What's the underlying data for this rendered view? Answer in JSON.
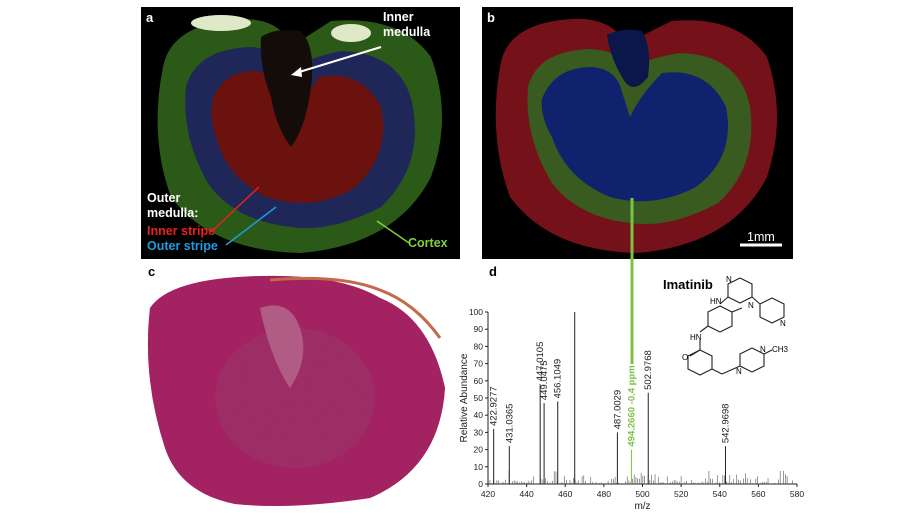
{
  "panels": {
    "a": {
      "label": "a",
      "inner_medulla": "Inner\nmedulla",
      "outer_medulla": "Outer\nmedulla:",
      "inner_stripe": "Inner stripe",
      "outer_stripe": "Outer stripe",
      "cortex": "Cortex",
      "colors": {
        "inner_stripe": "#e8221e",
        "outer_stripe": "#1e9be0",
        "cortex": "#7fd13b"
      }
    },
    "b": {
      "label": "b",
      "scale_bar": "1mm"
    },
    "c": {
      "label": "c"
    },
    "d": {
      "label": "d",
      "compound": "Imatinib",
      "structure_atoms": [
        "N",
        "N",
        "HN",
        "N",
        "HN",
        "O",
        "N",
        "N",
        "CH3"
      ]
    }
  },
  "chart_data": {
    "type": "bar",
    "xlabel": "m/z",
    "ylabel": "Relative Abundance",
    "xlim": [
      420,
      580
    ],
    "ylim": [
      0,
      100
    ],
    "xticks": [
      420,
      440,
      460,
      480,
      500,
      520,
      540,
      560,
      580
    ],
    "yticks": [
      0,
      10,
      20,
      30,
      40,
      50,
      60,
      70,
      80,
      90,
      100
    ],
    "labeled_peaks": [
      {
        "mz": 422.9277,
        "label": "422.9277",
        "intensity": 32
      },
      {
        "mz": 431.0365,
        "label": "431.0365",
        "intensity": 22
      },
      {
        "mz": 447.0105,
        "label": "447.0105",
        "intensity": 58
      },
      {
        "mz": 449.0475,
        "label": "449.0475",
        "intensity": 47
      },
      {
        "mz": 456.1049,
        "label": "456.1049",
        "intensity": 48
      },
      {
        "mz": 487.0029,
        "label": "487.0029",
        "intensity": 30
      },
      {
        "mz": 494.266,
        "label": "494.2660 -0.4 ppm",
        "intensity": 20,
        "highlight": true
      },
      {
        "mz": 502.9768,
        "label": "502.9768",
        "intensity": 53
      },
      {
        "mz": 542.9698,
        "label": "542.9698",
        "intensity": 22
      }
    ],
    "tallest_peak": {
      "mz": 464.9,
      "intensity": 100
    },
    "highlight_color": "#7dc243"
  }
}
